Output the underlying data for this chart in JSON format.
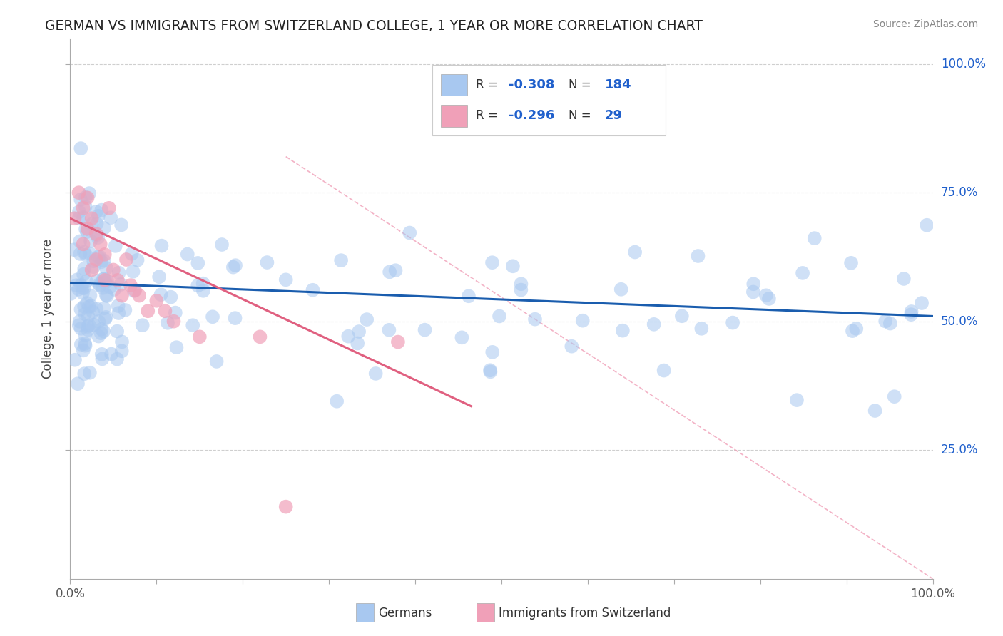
{
  "title": "GERMAN VS IMMIGRANTS FROM SWITZERLAND COLLEGE, 1 YEAR OR MORE CORRELATION CHART",
  "source_text": "Source: ZipAtlas.com",
  "ylabel": "College, 1 year or more",
  "xlim": [
    0.0,
    1.0
  ],
  "ylim": [
    0.0,
    1.05
  ],
  "ytick_values": [
    0.25,
    0.5,
    0.75,
    1.0
  ],
  "ytick_labels": [
    "25.0%",
    "50.0%",
    "75.0%",
    "100.0%"
  ],
  "blue_color": "#A8C8F0",
  "pink_color": "#F0A0B8",
  "blue_line_color": "#1A5DAE",
  "pink_line_color": "#E06080",
  "ref_line_color": "#F0A0B8",
  "legend_r_blue": "-0.308",
  "legend_n_blue": "184",
  "legend_r_pink": "-0.296",
  "legend_n_pink": "29",
  "title_color": "#222222",
  "label_color": "#444444",
  "axis_color": "#AAAAAA",
  "grid_color": "#BBBBBB",
  "r_value_color": "#2060CC",
  "background_color": "#FFFFFF",
  "blue_trend_y_start": 0.575,
  "blue_trend_y_end": 0.51,
  "pink_trend_y_start": 0.7,
  "pink_trend_y_end": 0.335,
  "pink_trend_x_end": 0.465,
  "ref_line_x_start": 0.25,
  "ref_line_y_start": 0.82,
  "ref_line_x_end": 1.0,
  "ref_line_y_end": 0.0
}
